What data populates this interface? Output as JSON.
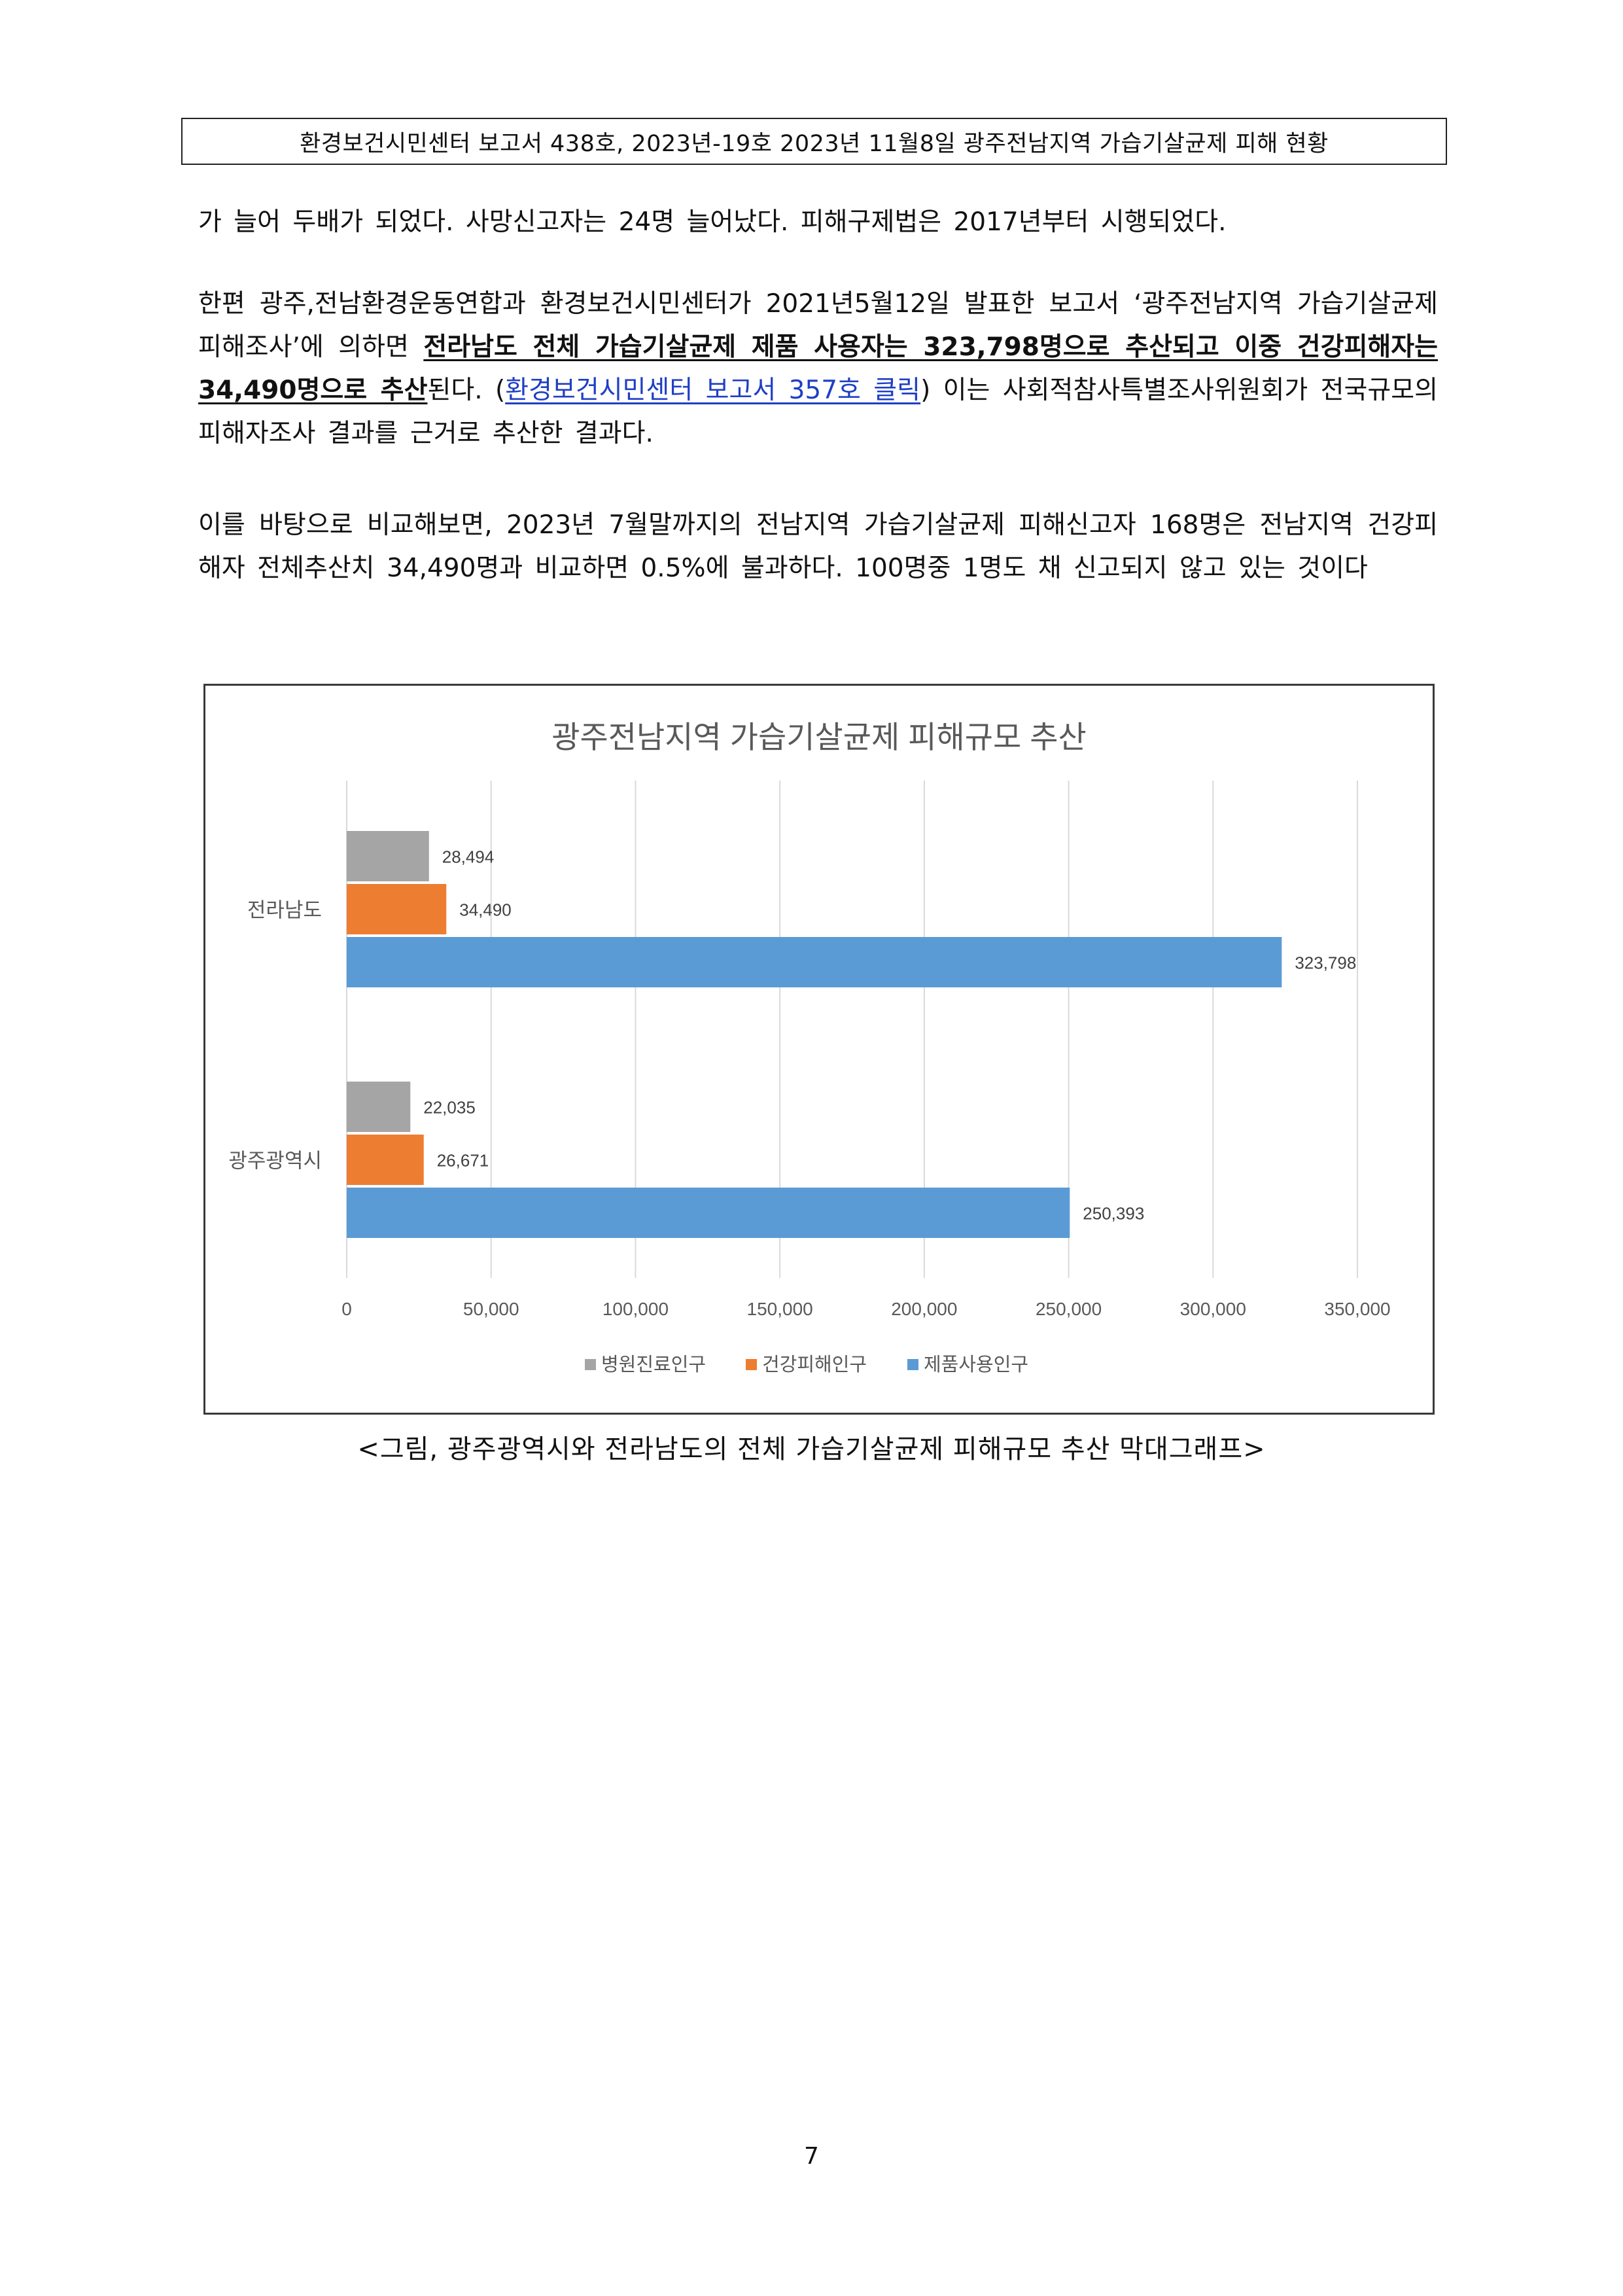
{
  "header": {
    "text": "환경보건시민센터 보고서 438호, 2023년-19호  2023년 11월8일  광주전남지역  가습기살균제 피해 현황"
  },
  "paragraphs": {
    "p1": "가 늘어 두배가 되었다. 사망신고자는 24명 늘어났다. 피해구제법은 2017년부터 시행되었다.",
    "p2": {
      "before": "한편 광주,전남환경운동연합과 환경보건시민센터가 2021년5월12일 발표한 보고서 ‘광주전남지역 가습기살균제 피해조사’에 의하면 ",
      "bold": "전라남도 전체 가습기살균제 제품 사용자는 323,798명으로 추산되고 이중 건강피해자는 34,490명으로 추산",
      "after_bold": "된다. (",
      "link": "환경보건시민센터 보고서 357호 클릭",
      "after_link": ")  이는 사회적참사특별조사위원회가 전국규모의 피해자조사 결과를 근거로 추산한 결과다."
    },
    "p3": "이를 바탕으로 비교해보면, 2023년 7월말까지의 전남지역 가습기살균제 피해신고자 168명은 전남지역 건강피해자 전체추산치 34,490명과 비교하면 0.5%에 불과하다. 100명중 1명도 채 신고되지 않고 있는 것이다"
  },
  "chart_data": {
    "type": "bar",
    "orientation": "horizontal",
    "title": "광주전남지역 가습기살균제 피해규모 추산",
    "categories": [
      "전라남도",
      "광주광역시"
    ],
    "series": [
      {
        "name": "병원진료인구",
        "color": "#a5a5a5",
        "values": [
          28494,
          22035
        ],
        "labels": [
          "28,494",
          "22,035"
        ]
      },
      {
        "name": "건강피해인구",
        "color": "#ed7d31",
        "values": [
          34490,
          26671
        ],
        "labels": [
          "34,490",
          "26,671"
        ]
      },
      {
        "name": "제품사용인구",
        "color": "#5b9bd5",
        "values": [
          323798,
          250393
        ],
        "labels": [
          "323,798",
          "250,393"
        ]
      }
    ],
    "xlim": [
      0,
      350000
    ],
    "ticks": [
      0,
      50000,
      100000,
      150000,
      200000,
      250000,
      300000,
      350000
    ],
    "tick_labels": [
      "0",
      "50,000",
      "100,000",
      "150,000",
      "200,000",
      "250,000",
      "300,000",
      "350,000"
    ],
    "grid": true,
    "legend_position": "bottom"
  },
  "caption": "<그림, 광주광역시와 전라남도의 전체 가습기살균제 피해규모 추산 막대그래프>",
  "page_number": "7"
}
